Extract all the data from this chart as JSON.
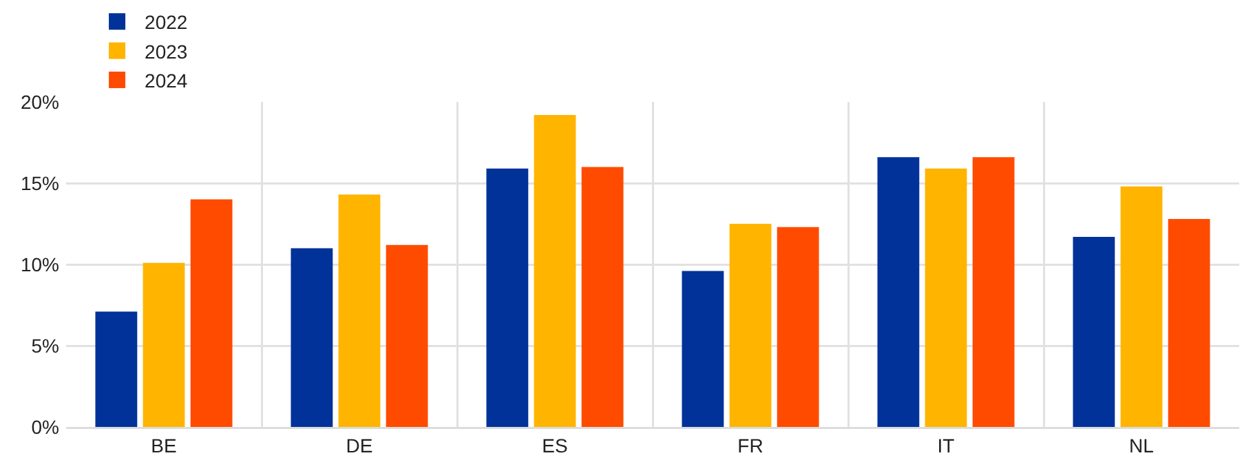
{
  "chart_data": {
    "type": "bar",
    "categories": [
      "BE",
      "DE",
      "ES",
      "FR",
      "IT",
      "NL"
    ],
    "series": [
      {
        "name": "2022",
        "color": "#003299",
        "values": [
          7.1,
          11.0,
          15.9,
          9.6,
          16.6,
          11.7
        ]
      },
      {
        "name": "2023",
        "color": "#ffb400",
        "values": [
          10.1,
          14.3,
          19.2,
          12.5,
          15.9,
          14.8
        ]
      },
      {
        "name": "2024",
        "color": "#ff4b00",
        "values": [
          14.0,
          11.2,
          16.0,
          12.3,
          16.6,
          12.8
        ]
      }
    ],
    "ylim": [
      0,
      20
    ],
    "yticks": [
      {
        "value": 0,
        "label": "0%"
      },
      {
        "value": 5,
        "label": "5%"
      },
      {
        "value": 10,
        "label": "10%"
      },
      {
        "value": 15,
        "label": "15%"
      },
      {
        "value": 20,
        "label": "20%"
      }
    ],
    "grid": true,
    "legend": "top left"
  }
}
